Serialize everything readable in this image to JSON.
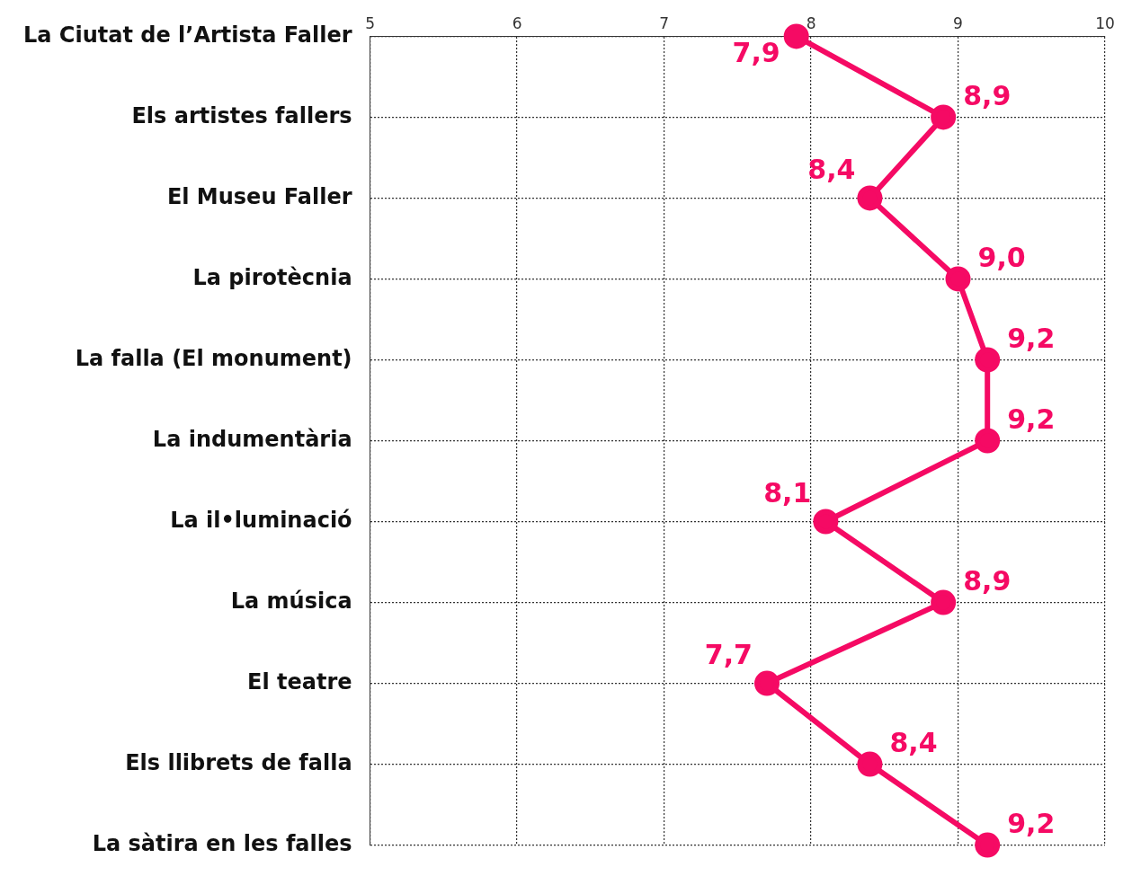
{
  "chart_data": {
    "type": "line",
    "orientation": "horizontal",
    "categories": [
      "La Ciutat de l’Artista Faller",
      "Els artistes fallers",
      "El Museu Faller",
      "La pirotècnia",
      "La falla (El monument)",
      "La indumentària",
      "La il•luminació",
      "La música",
      "El teatre",
      "Els llibrets de falla",
      "La sàtira en les falles"
    ],
    "values": [
      7.9,
      8.9,
      8.4,
      9.0,
      9.2,
      9.2,
      8.1,
      8.9,
      7.7,
      8.4,
      9.2
    ],
    "value_labels": [
      "7,9",
      "8,9",
      "8,4",
      "9,0",
      "9,2",
      "9,2",
      "8,1",
      "8,9",
      "7,7",
      "8,4",
      "9,2"
    ],
    "color": "#f50a64",
    "xlim": [
      5,
      10
    ],
    "xticks": [
      5,
      6,
      7,
      8,
      9,
      10
    ],
    "grid": true,
    "legend": false,
    "marker": "circle",
    "line_style": "solid"
  }
}
